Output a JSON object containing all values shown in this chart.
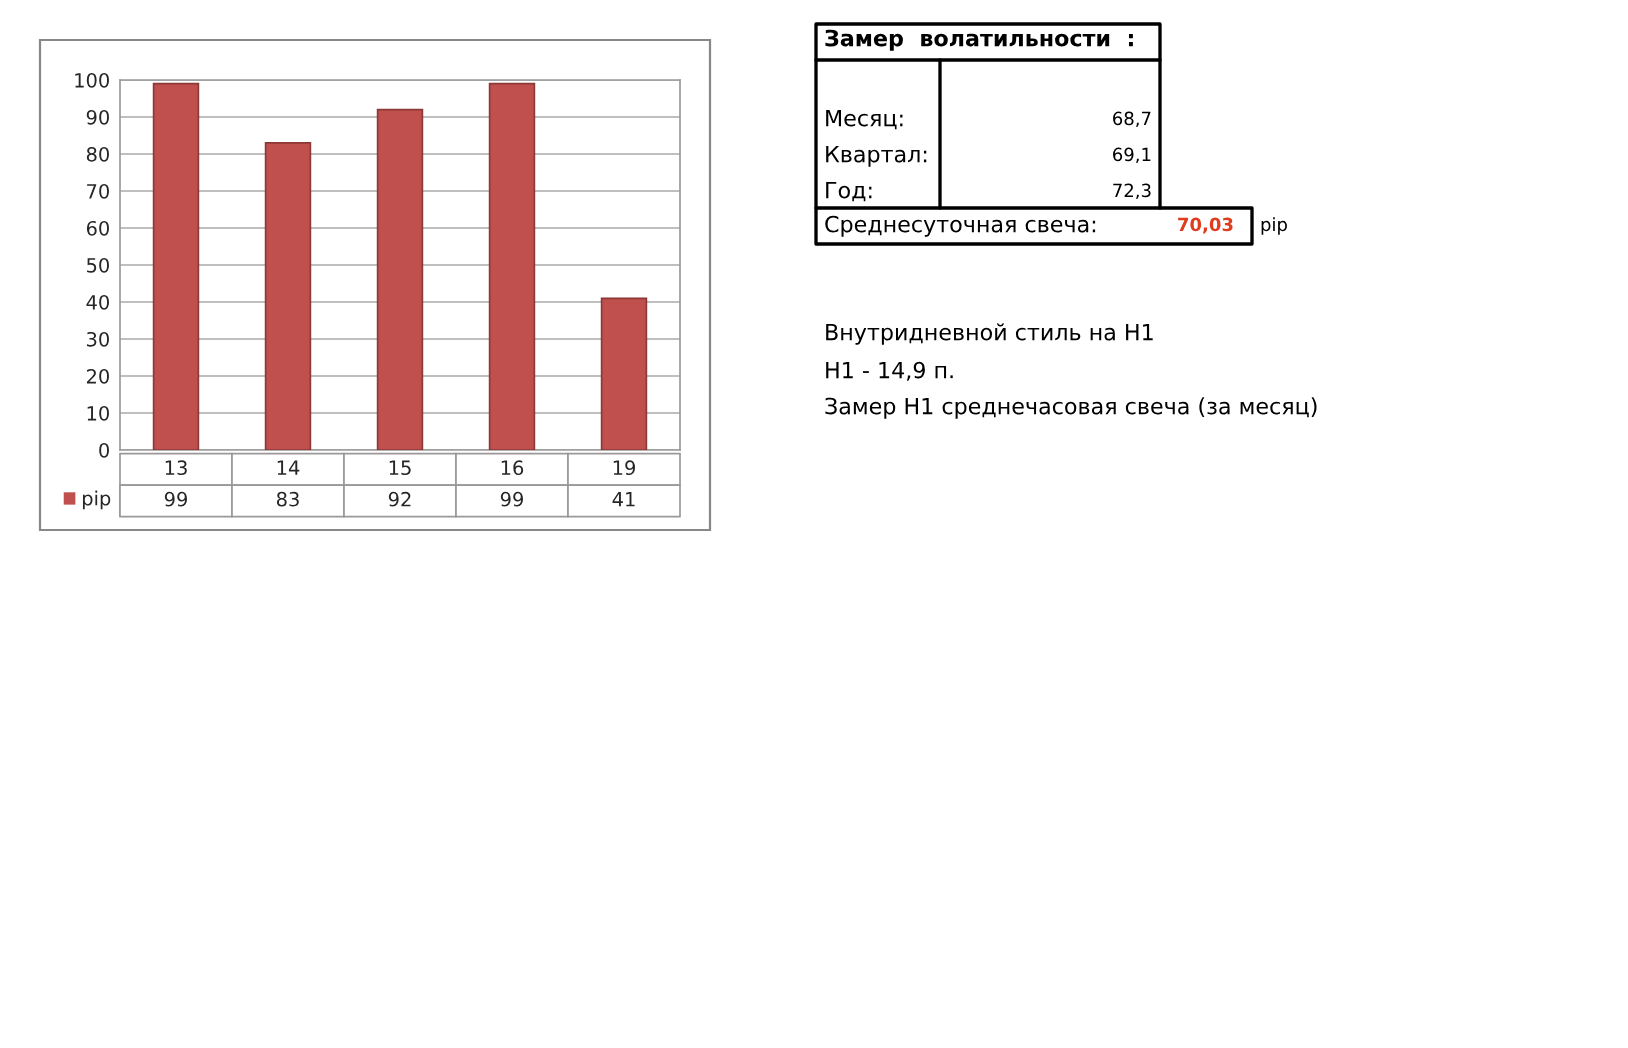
{
  "chart_data": {
    "type": "bar",
    "categories": [
      "13",
      "14",
      "15",
      "16",
      "19"
    ],
    "series": [
      {
        "name": "pip",
        "color": "#c0504d",
        "values": [
          99,
          83,
          92,
          99,
          41
        ]
      }
    ],
    "ylim": [
      0,
      100
    ],
    "yticks": [
      0,
      10,
      20,
      30,
      40,
      50,
      60,
      70,
      80,
      90,
      100
    ],
    "grid": "y",
    "data_labels": true,
    "legend": "bottom left",
    "annotations": [
      "Замер  волатильности  :",
      "Месяц:",
      "68,7",
      "Квартал:",
      "69,1",
      "Год:",
      "72,3",
      "Среднесуточная свеча:",
      "70,03",
      "pip",
      "Внутридневной стиль на Н1",
      "Н1 - 14,9 п.",
      "Замер Н1 среднечасовая свеча (за месяц)"
    ]
  }
}
